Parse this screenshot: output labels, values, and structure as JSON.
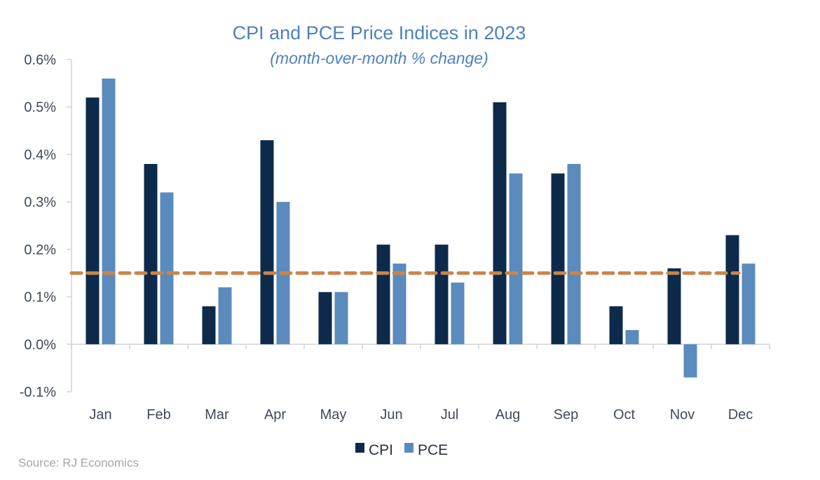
{
  "chart_data": {
    "type": "bar",
    "title": "CPI and PCE Price Indices in 2023",
    "subtitle": "(month-over-month % change)",
    "categories": [
      "Jan",
      "Feb",
      "Mar",
      "Apr",
      "May",
      "Jun",
      "Jul",
      "Aug",
      "Sep",
      "Oct",
      "Nov",
      "Dec"
    ],
    "series": [
      {
        "name": "CPI",
        "color": "#0d2a4b",
        "values": [
          0.52,
          0.38,
          0.08,
          0.43,
          0.11,
          0.21,
          0.21,
          0.51,
          0.36,
          0.08,
          0.16,
          0.23
        ]
      },
      {
        "name": "PCE",
        "color": "#5b8bbd",
        "values": [
          0.56,
          0.32,
          0.12,
          0.3,
          0.11,
          0.17,
          0.13,
          0.36,
          0.38,
          0.03,
          -0.07,
          0.17
        ]
      }
    ],
    "ylim": [
      -0.1,
      0.6
    ],
    "yticks": [
      "-0.1%",
      "0.0%",
      "0.1%",
      "0.2%",
      "0.3%",
      "0.4%",
      "0.5%",
      "0.6%"
    ],
    "ytick_values": [
      -0.1,
      0,
      0.1,
      0.2,
      0.3,
      0.4,
      0.5,
      0.6
    ],
    "reference_line": {
      "value": 0.15,
      "color": "#c8864a",
      "style": "dashed"
    },
    "legend_placement": "bottom-center",
    "grid": false,
    "source": "Source: RJ Economics"
  }
}
